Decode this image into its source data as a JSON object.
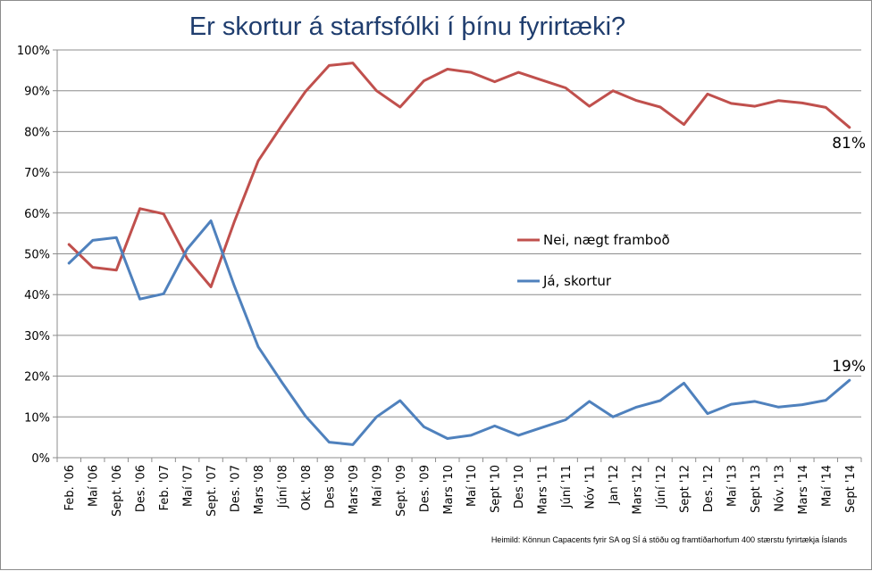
{
  "chart_data": {
    "type": "line",
    "title": "Er skortur á starfsfólki í þínu fyrirtæki?",
    "source": "Heimild: Könnun Capacents fyrir SA og SÍ á stöðu og framtíðarhorfum 400 stærstu fyrirtækja Íslands",
    "ylim": [
      0,
      100
    ],
    "y_ticks": [
      0,
      10,
      20,
      30,
      40,
      50,
      60,
      70,
      80,
      90,
      100
    ],
    "y_tick_labels": [
      "0%",
      "10%",
      "20%",
      "30%",
      "40%",
      "50%",
      "60%",
      "70%",
      "80%",
      "90%",
      "100%"
    ],
    "grid": true,
    "legend_position": "center-right",
    "categories": [
      "Feb. '06",
      "Maí '06",
      "Sept. '06",
      "Des. '06",
      "Feb. '07",
      "Maí '07",
      "Sept. '07",
      "Des. '07",
      "Mars '08",
      "Júní '08",
      "Okt. '08",
      "Des '08",
      "Mars '09",
      "Maí '09",
      "Sept. '09",
      "Des. '09",
      "Mars '10",
      "Maí '10",
      "Sept '10",
      "Des '10",
      "Mars '11",
      "Júní '11",
      "Nóv '11",
      "Jan '12",
      "Mars '12",
      "Júní '12",
      "Sept '12",
      "Des. '12",
      "Maí '13",
      "Sept '13",
      "Nóv. '13",
      "Mars '14",
      "Maí '14",
      "Sept '14"
    ],
    "series": [
      {
        "name": "Nei, nægt framboð",
        "color": "#c0504d",
        "values": [
          52.3,
          46.7,
          46.0,
          61.1,
          59.8,
          48.8,
          41.9,
          58.0,
          72.8,
          81.5,
          89.8,
          96.2,
          96.8,
          90.0,
          86.0,
          92.4,
          95.3,
          94.5,
          92.2,
          94.5,
          92.6,
          90.7,
          86.2,
          90.0,
          87.6,
          86.0,
          81.7,
          89.2,
          86.9,
          86.2,
          87.6,
          87.0,
          85.9,
          81.0
        ],
        "end_label": "81%"
      },
      {
        "name": "Já, skortur",
        "color": "#4f81bd",
        "values": [
          47.7,
          53.3,
          54.0,
          38.9,
          40.2,
          51.2,
          58.1,
          42.0,
          27.2,
          18.5,
          10.2,
          3.8,
          3.2,
          10.0,
          14.0,
          7.6,
          4.7,
          5.5,
          7.8,
          5.5,
          7.4,
          9.3,
          13.8,
          10.0,
          12.4,
          14.0,
          18.3,
          10.8,
          13.1,
          13.8,
          12.4,
          13.0,
          14.1,
          19.0
        ],
        "end_label": "19%"
      }
    ]
  }
}
